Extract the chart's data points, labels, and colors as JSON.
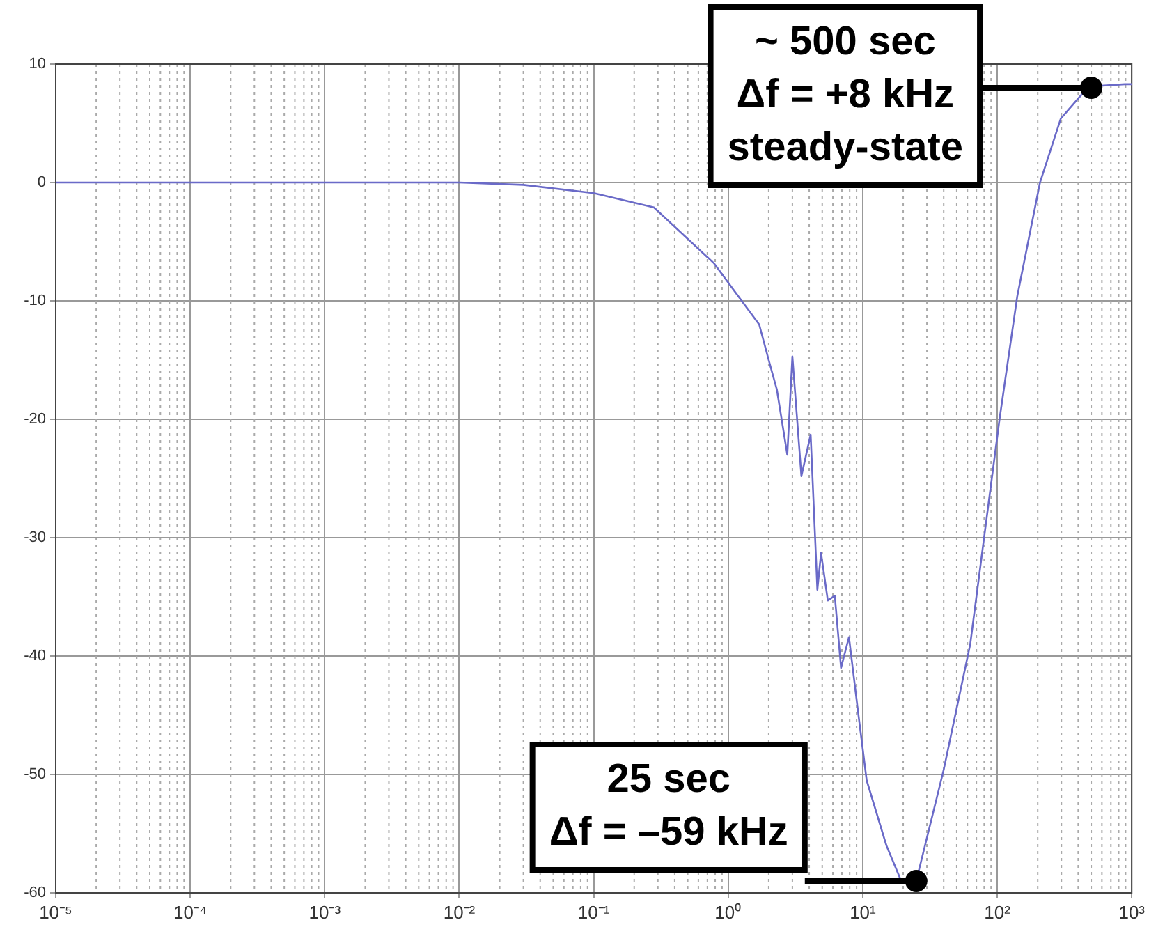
{
  "chart_data": {
    "type": "line",
    "log": "x",
    "grid": true,
    "marker": "none",
    "line_style": "solid",
    "xlim": [
      1e-05,
      1000
    ],
    "xticks": [
      {
        "value": 1e-05,
        "label": "10⁻⁵"
      },
      {
        "value": 0.0001,
        "label": "10⁻⁴"
      },
      {
        "value": 0.001,
        "label": "10⁻³"
      },
      {
        "value": 0.01,
        "label": "10⁻²"
      },
      {
        "value": 0.1,
        "label": "10⁻¹"
      },
      {
        "value": 1,
        "label": "10⁰"
      },
      {
        "value": 10,
        "label": "10¹"
      },
      {
        "value": 100,
        "label": "10²"
      },
      {
        "value": 1000,
        "label": "10³"
      }
    ],
    "ylim": [
      -60,
      10
    ],
    "yticks": [
      -60,
      -50,
      -40,
      -30,
      -20,
      -10,
      0,
      10
    ],
    "series": [
      {
        "color": "#6a6ac8",
        "x": [
          1e-05,
          0.001,
          0.01,
          0.03,
          0.1,
          0.28,
          0.78,
          1.26,
          1.7,
          2.0,
          2.3,
          2.75,
          3.0,
          3.5,
          4.1,
          4.6,
          4.9,
          5.5,
          6.2,
          6.9,
          7.9,
          9.3,
          10.7,
          15,
          19,
          25,
          40,
          63,
          82,
          104,
          141,
          208,
          297,
          477,
          890,
          1000
        ],
        "values": [
          0,
          0,
          0,
          -0.2,
          -0.9,
          -2.1,
          -6.8,
          -10,
          -12,
          -15,
          -17.5,
          -23,
          -14.7,
          -24.8,
          -21.3,
          -34.4,
          -31.3,
          -35.3,
          -34.9,
          -41,
          -38.4,
          -45,
          -50.5,
          -56,
          -58.8,
          -59,
          -49.6,
          -39,
          -29,
          -20,
          -9.6,
          0,
          5.4,
          8.1,
          8.3,
          8.3
        ]
      }
    ],
    "annotations": [
      {
        "text": "~ 500 sec\nΔf = +8 kHz\nsteady-state",
        "x": 500,
        "y": 8
      },
      {
        "text": "25 sec\nΔf = –59 kHz",
        "x": 25,
        "y": -59
      }
    ]
  }
}
